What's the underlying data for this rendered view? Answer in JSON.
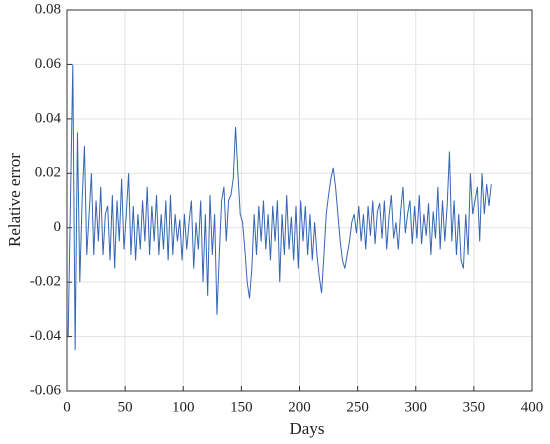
{
  "chart_data": {
    "type": "line",
    "xlabel": "Days",
    "ylabel": "Relative error",
    "xlim": [
      0,
      400
    ],
    "xticks": [
      0,
      50,
      100,
      150,
      200,
      250,
      300,
      350,
      400
    ],
    "ylim": [
      -0.06,
      0.08
    ],
    "yticks": [
      -0.06,
      -0.04,
      -0.02,
      0,
      0.02,
      0.04,
      0.06,
      0.08
    ],
    "grid": true,
    "series": [
      {
        "color": "#3566b4",
        "x": [
          1,
          3,
          5,
          7,
          9,
          11,
          13,
          15,
          17,
          19,
          21,
          23,
          25,
          27,
          29,
          31,
          33,
          35,
          37,
          39,
          41,
          43,
          45,
          47,
          49,
          51,
          53,
          55,
          57,
          59,
          61,
          63,
          65,
          67,
          69,
          71,
          73,
          75,
          77,
          79,
          81,
          83,
          85,
          87,
          89,
          91,
          93,
          95,
          97,
          99,
          101,
          103,
          105,
          107,
          109,
          111,
          113,
          115,
          117,
          119,
          121,
          123,
          125,
          127,
          129,
          131,
          133,
          135,
          137,
          139,
          141,
          143,
          145,
          147,
          149,
          151,
          153,
          155,
          157,
          159,
          161,
          163,
          165,
          167,
          169,
          171,
          173,
          175,
          177,
          179,
          181,
          183,
          185,
          187,
          189,
          191,
          193,
          195,
          197,
          199,
          201,
          203,
          205,
          207,
          209,
          211,
          213,
          215,
          217,
          219,
          221,
          223,
          225,
          227,
          229,
          231,
          233,
          235,
          237,
          239,
          241,
          243,
          245,
          247,
          249,
          251,
          253,
          255,
          257,
          259,
          261,
          263,
          265,
          267,
          269,
          271,
          273,
          275,
          277,
          279,
          281,
          283,
          285,
          287,
          289,
          291,
          293,
          295,
          297,
          299,
          301,
          303,
          305,
          307,
          309,
          311,
          313,
          315,
          317,
          319,
          321,
          323,
          325,
          327,
          329,
          331,
          333,
          335,
          337,
          339,
          341,
          343,
          345,
          347,
          349,
          351,
          353,
          355,
          357,
          359,
          361,
          363,
          365
        ],
        "values": [
          -0.04,
          0.01,
          0.06,
          -0.045,
          0.035,
          -0.02,
          0.01,
          0.03,
          -0.01,
          0.005,
          0.02,
          -0.01,
          0.01,
          -0.005,
          0.015,
          -0.01,
          0.005,
          0.008,
          -0.012,
          0.012,
          -0.015,
          0.01,
          -0.005,
          0.018,
          -0.008,
          0.005,
          0.02,
          -0.01,
          0.008,
          -0.012,
          0.005,
          -0.008,
          0.01,
          -0.005,
          0.015,
          -0.01,
          0.008,
          -0.005,
          0.012,
          -0.01,
          0.005,
          -0.008,
          0.01,
          -0.012,
          0.012,
          -0.01,
          0.005,
          -0.005,
          0.003,
          -0.012,
          0.005,
          -0.008,
          0.002,
          0.01,
          -0.015,
          0.002,
          -0.008,
          0.01,
          -0.02,
          0.005,
          -0.025,
          0.012,
          -0.01,
          0.005,
          -0.032,
          -0.01,
          0.01,
          0.015,
          -0.005,
          0.01,
          0.012,
          0.018,
          0.037,
          0.02,
          0.005,
          0.002,
          -0.008,
          -0.02,
          -0.026,
          -0.015,
          0.005,
          -0.01,
          0.008,
          -0.005,
          0.01,
          -0.008,
          0.005,
          -0.012,
          0.008,
          -0.005,
          0.01,
          -0.02,
          0.005,
          -0.01,
          0.012,
          -0.008,
          0.004,
          -0.012,
          0.008,
          -0.015,
          0.01,
          -0.005,
          0.008,
          -0.01,
          0.005,
          -0.012,
          0.002,
          -0.01,
          -0.018,
          -0.024,
          -0.01,
          0.005,
          0.012,
          0.018,
          0.022,
          0.015,
          0.005,
          -0.005,
          -0.012,
          -0.015,
          -0.01,
          -0.005,
          0.002,
          0.005,
          -0.002,
          0.008,
          -0.005,
          0.005,
          -0.008,
          0.008,
          -0.003,
          0.01,
          -0.006,
          0.006,
          0.009,
          -0.004,
          0.01,
          -0.008,
          0.004,
          0.012,
          -0.004,
          0.002,
          -0.008,
          0.006,
          0.015,
          -0.002,
          0.005,
          0.01,
          -0.006,
          0.008,
          -0.004,
          0.012,
          -0.006,
          0.005,
          -0.003,
          0.009,
          -0.01,
          0.006,
          -0.004,
          0.015,
          -0.008,
          0.01,
          -0.005,
          0.008,
          0.028,
          -0.005,
          0.01,
          -0.01,
          0.005,
          -0.012,
          -0.015,
          0.005,
          -0.01,
          0.02,
          0.005,
          0.01,
          0.015,
          -0.005,
          0.02,
          0.005,
          0.016,
          0.008,
          0.016
        ]
      }
    ]
  }
}
